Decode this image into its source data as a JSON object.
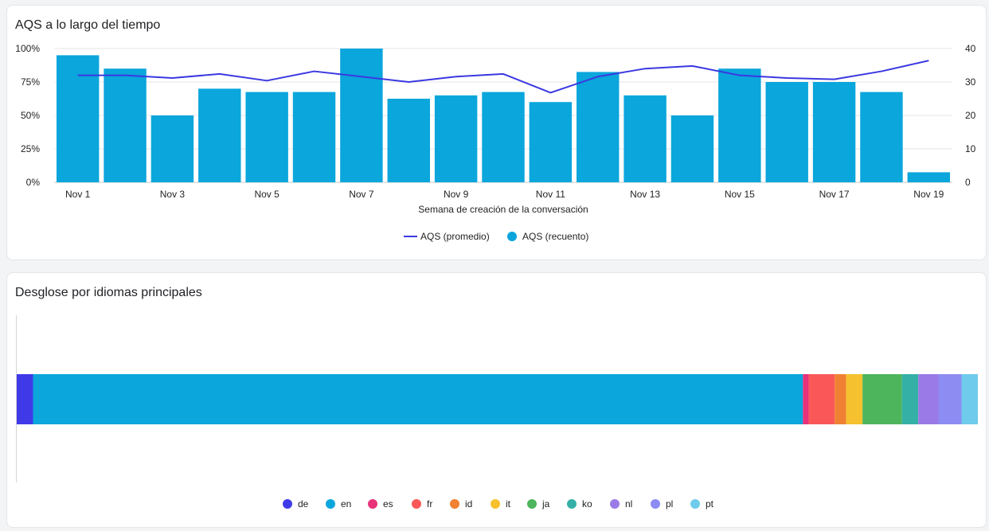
{
  "cards": {
    "time": {
      "title": "AQS a lo largo del tiempo"
    },
    "lang": {
      "title": "Desglose por idiomas principales"
    }
  },
  "chart_data": [
    {
      "type": "bar",
      "title": "AQS a lo largo del tiempo",
      "xlabel": "Semana de creación de la conversación",
      "x_ticks": [
        "Nov 1",
        "Nov 3",
        "Nov 5",
        "Nov 7",
        "Nov 9",
        "Nov 11",
        "Nov 13",
        "Nov 15",
        "Nov 17",
        "Nov 19"
      ],
      "y_left_ticks": [
        "0%",
        "25%",
        "50%",
        "75%",
        "100%"
      ],
      "y_left_range": [
        0,
        100
      ],
      "y_right_ticks": [
        "0",
        "10",
        "20",
        "30",
        "40"
      ],
      "y_right_range": [
        0,
        40
      ],
      "grid": true,
      "legend_position": "bottom",
      "categories": [
        "Nov 1",
        "Nov 2",
        "Nov 3",
        "Nov 4",
        "Nov 5",
        "Nov 6",
        "Nov 7",
        "Nov 8",
        "Nov 9",
        "Nov 10",
        "Nov 11",
        "Nov 12",
        "Nov 13",
        "Nov 14",
        "Nov 15",
        "Nov 16",
        "Nov 17",
        "Nov 18",
        "Nov 19"
      ],
      "series": [
        {
          "name": "AQS (promedio)",
          "kind": "line",
          "axis": "left",
          "color": "#3b38e0",
          "values": [
            80,
            80,
            78,
            81,
            76,
            83,
            79,
            75,
            79,
            81,
            67,
            79,
            85,
            87,
            80,
            78,
            77,
            83,
            91
          ]
        },
        {
          "name": "AQS (recuento)",
          "kind": "bar",
          "axis": "right",
          "color": "#0aa6dc",
          "values": [
            38,
            34,
            20,
            28,
            27,
            27,
            40,
            25,
            26,
            27,
            24,
            33,
            26,
            20,
            34,
            30,
            30,
            27,
            3
          ]
        }
      ]
    },
    {
      "type": "bar",
      "orientation": "horizontal",
      "stacked": true,
      "title": "Desglose por idiomas principales",
      "legend_position": "bottom",
      "series": [
        {
          "name": "de",
          "value": 1.7,
          "color": "#3f3ae8"
        },
        {
          "name": "en",
          "value": 80.1,
          "color": "#0aa6dc"
        },
        {
          "name": "es",
          "value": 0.6,
          "color": "#e8327a"
        },
        {
          "name": "fr",
          "value": 2.7,
          "color": "#fa5858"
        },
        {
          "name": "id",
          "value": 1.2,
          "color": "#f08132"
        },
        {
          "name": "it",
          "value": 1.7,
          "color": "#f5c12e"
        },
        {
          "name": "ja",
          "value": 4.1,
          "color": "#4db55b"
        },
        {
          "name": "ko",
          "value": 1.7,
          "color": "#35b0a6"
        },
        {
          "name": "nl",
          "value": 2.1,
          "color": "#9a7ae6"
        },
        {
          "name": "pl",
          "value": 2.4,
          "color": "#8c8cf2"
        },
        {
          "name": "pt",
          "value": 1.7,
          "color": "#6ecbec"
        }
      ]
    }
  ]
}
